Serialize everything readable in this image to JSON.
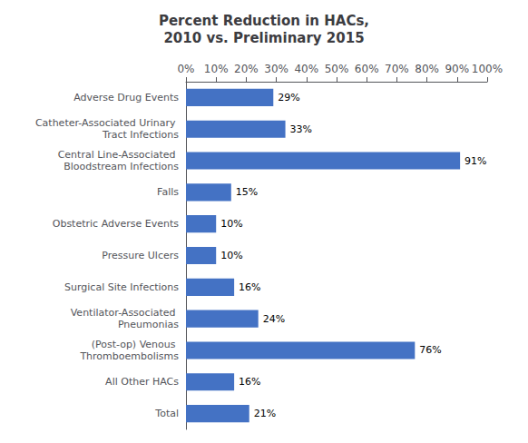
{
  "chart_data": {
    "type": "bar",
    "orientation": "horizontal",
    "title": "Percent Reduction in HACs,\n2010 vs. Preliminary 2015",
    "categories": [
      "Adverse Drug Events",
      "Catheter-Associated Urinary Tract Infections",
      "Central Line-Associated Bloodstream Infections",
      "Falls",
      "Obstetric Adverse Events",
      "Pressure Ulcers",
      "Surgical Site Infections",
      "Ventilator-Associated Pneumonias",
      "(Post-op) Venous Thromboembolisms",
      "All Other HACs",
      "Total"
    ],
    "values": [
      29,
      33,
      91,
      15,
      10,
      10,
      16,
      24,
      76,
      16,
      21
    ],
    "value_labels": [
      "29%",
      "33%",
      "91%",
      "15%",
      "10%",
      "10%",
      "16%",
      "24%",
      "76%",
      "16%",
      "21%"
    ],
    "data_labels": true,
    "color": "#4472C4",
    "xlim": [
      0,
      100
    ],
    "xticks": [
      {
        "value": 0,
        "label": "0%"
      },
      {
        "value": 10,
        "label": "10%"
      },
      {
        "value": 20,
        "label": "20%"
      },
      {
        "value": 30,
        "label": "30%"
      },
      {
        "value": 40,
        "label": "40%"
      },
      {
        "value": 50,
        "label": "50%"
      },
      {
        "value": 60,
        "label": "60%"
      },
      {
        "value": 70,
        "label": "70%"
      },
      {
        "value": 80,
        "label": "80%"
      },
      {
        "value": 90,
        "label": "90%"
      },
      {
        "value": 100,
        "label": "100%"
      }
    ],
    "grid": false
  }
}
